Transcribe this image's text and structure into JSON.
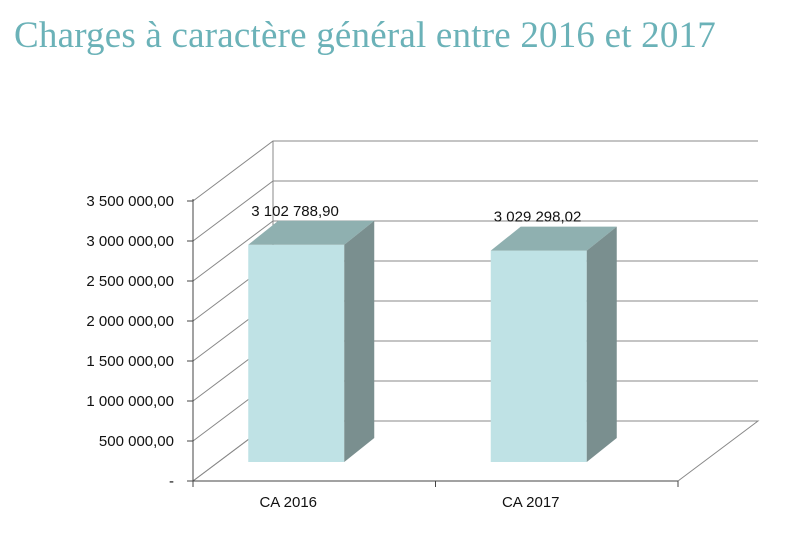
{
  "title": "Charges à caractère général entre 2016 et 2017",
  "chart_data": {
    "type": "bar",
    "title": "Charges à caractère général entre 2016 et 2017",
    "categories": [
      "CA 2016",
      "CA 2017"
    ],
    "values": [
      3102788.9,
      3029298.02
    ],
    "value_labels": [
      "3 102 788,90",
      "3 029 298,02"
    ],
    "ylim": [
      0,
      3500000
    ],
    "y_ticks": [
      0,
      500000,
      1000000,
      1500000,
      2000000,
      2500000,
      3000000,
      3500000
    ],
    "y_tick_labels": [
      "-",
      "500 000,00",
      "1 000 000,00",
      "1 500 000,00",
      "2 000 000,00",
      "2 500 000,00",
      "3 000 000,00",
      "3 500 000,00"
    ],
    "grid": true,
    "legend": "none",
    "style": "3d-column",
    "colors": {
      "bar_front": "#bfe2e5",
      "bar_top": "#8fb0b0",
      "bar_side": "#7a8f8f",
      "grid": "#888888",
      "title": "#6bb2b8"
    }
  }
}
